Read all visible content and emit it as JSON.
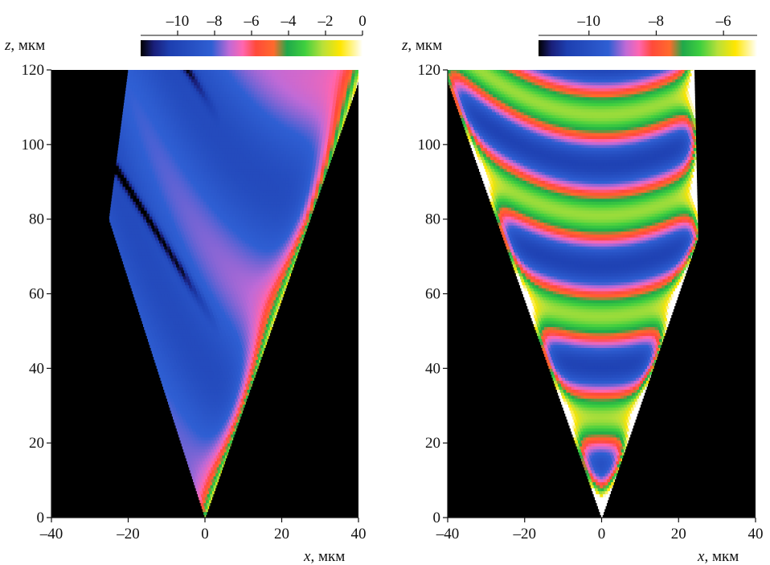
{
  "chart_data": [
    {
      "type": "heatmap",
      "panel": "left",
      "xlabel_var": "x",
      "xlabel_unit": ", мкм",
      "ylabel_var": "z",
      "ylabel_unit": ", мкм",
      "xlim": [
        -40,
        40
      ],
      "ylim": [
        0,
        120
      ],
      "x_ticks": [
        -40,
        -20,
        0,
        20,
        40
      ],
      "x_tick_labels": [
        "–40",
        "–20",
        "0",
        "20",
        "40"
      ],
      "y_ticks": [
        0,
        20,
        40,
        60,
        80,
        100,
        120
      ],
      "y_tick_labels": [
        "0",
        "20",
        "40",
        "60",
        "80",
        "100",
        "120"
      ],
      "colorbar": {
        "range": [
          -12,
          0
        ],
        "ticks": [
          -10,
          -8,
          -6,
          -4,
          -2,
          0
        ],
        "tick_labels": [
          "–10",
          "–8",
          "–6",
          "–4",
          "–2",
          "0"
        ],
        "scale": "log10"
      },
      "field_region": {
        "apex": [
          0,
          0
        ],
        "left_edge": [
          [
            0,
            0
          ],
          [
            -25,
            80
          ],
          [
            -20,
            120
          ]
        ],
        "right_edge": [
          [
            0,
            0
          ],
          [
            41,
            120
          ]
        ]
      },
      "dark_fringes_left_z": [
        24,
        34,
        44,
        58,
        71,
        79
      ],
      "background_value": -12
    },
    {
      "type": "heatmap",
      "panel": "right",
      "xlabel_var": "x",
      "xlabel_unit": ", мкм",
      "ylabel_var": "z",
      "ylabel_unit": ", мкм",
      "xlim": [
        -40,
        40
      ],
      "ylim": [
        0,
        120
      ],
      "x_ticks": [
        -40,
        -20,
        0,
        20,
        40
      ],
      "x_tick_labels": [
        "–40",
        "–20",
        "0",
        "20",
        "40"
      ],
      "y_ticks": [
        0,
        20,
        40,
        60,
        80,
        100,
        120
      ],
      "y_tick_labels": [
        "0",
        "20",
        "40",
        "60",
        "80",
        "100",
        "120"
      ],
      "colorbar": {
        "range": [
          -11.5,
          -5
        ],
        "ticks": [
          -10,
          -8,
          -6
        ],
        "tick_labels": [
          "–10",
          "–8",
          "–6"
        ],
        "scale": "log10"
      },
      "field_region": {
        "apex": [
          0,
          0
        ],
        "left_edge": [
          [
            0,
            0
          ],
          [
            -41,
            120
          ]
        ],
        "right_edge": [
          [
            0,
            0
          ],
          [
            25,
            75
          ],
          [
            24,
            120
          ]
        ]
      },
      "vertex_fringes_z": [
        15,
        20,
        28,
        35,
        41,
        51,
        58,
        66,
        74,
        84,
        94,
        106,
        117
      ],
      "background_value": -12
    }
  ]
}
